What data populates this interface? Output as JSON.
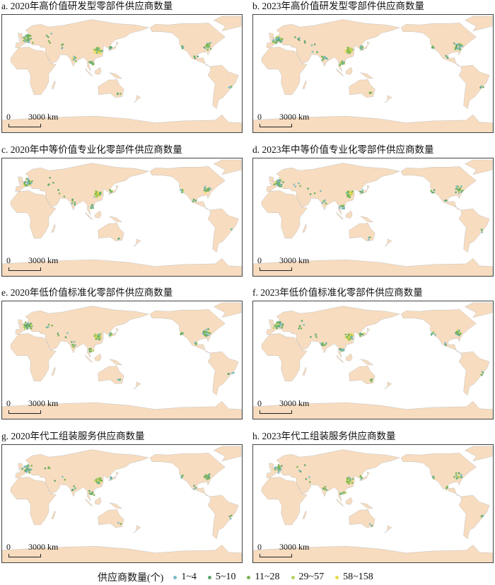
{
  "panels": [
    {
      "title": "a. 2020年高价值研发型零部件供应商数量"
    },
    {
      "title": "b. 2023年高价值研发型零部件供应商数量"
    },
    {
      "title": "c. 2020年中等价值专业化零部件供应商数量"
    },
    {
      "title": "d. 2023年中等价值专业化零部件供应商数量"
    },
    {
      "title": "e. 2020年低价值标准化零部件供应商数量"
    },
    {
      "title": "f. 2023年低价值标准化零部件供应商数量"
    },
    {
      "title": "g. 2020年代工组装服务供应商数量"
    },
    {
      "title": "h. 2023年代工组装服务供应商数量"
    }
  ],
  "scale_bar": {
    "zero": "0",
    "distance": "3000 km"
  },
  "legend": {
    "title": "供应商数量(个)",
    "classes": [
      {
        "label": "1~4",
        "color": "#7fbcc4"
      },
      {
        "label": "5~10",
        "color": "#5fa873"
      },
      {
        "label": "11~28",
        "color": "#7ab554"
      },
      {
        "label": "29~57",
        "color": "#b5d15e"
      },
      {
        "label": "58~158",
        "color": "#e6dd4f"
      }
    ]
  },
  "map_style": {
    "land": "#f7dcbf",
    "ocean": "#ffffff",
    "border": "#b8b8b8",
    "central_meridian": "150°E"
  }
}
